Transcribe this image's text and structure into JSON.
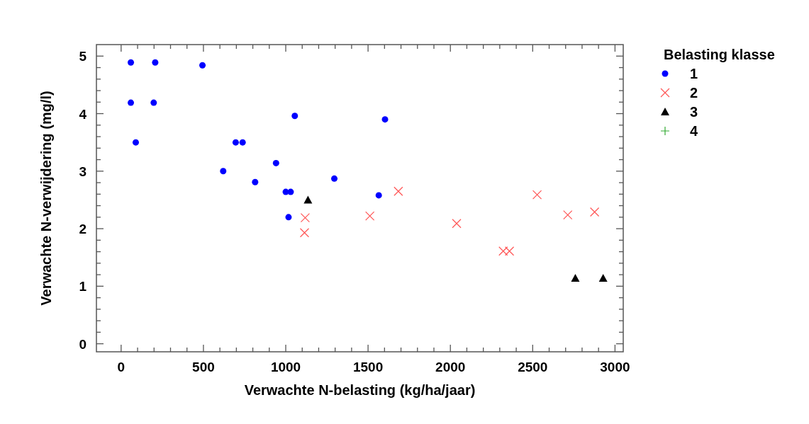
{
  "chart_data": {
    "type": "scatter",
    "xlabel": "Verwachte N-belasting (kg/ha/jaar)",
    "ylabel": "Verwachte N-verwijdering (mg/l)",
    "legend_title": "Belasting klasse",
    "legend": "right",
    "grid": false,
    "xlim": [
      -150,
      3050
    ],
    "ylim": [
      -0.14,
      5.2
    ],
    "xticks": [
      0,
      {
        "value": 100,
        "label": null
      },
      {
        "value": 200,
        "label": null
      },
      {
        "value": 300,
        "label": null
      },
      {
        "value": 400,
        "label": null
      },
      500,
      {
        "value": 600,
        "label": null
      },
      {
        "value": 700,
        "label": null
      },
      {
        "value": 800,
        "label": null
      },
      {
        "value": 900,
        "label": null
      },
      1000,
      {
        "value": 1100,
        "label": null
      },
      {
        "value": 1200,
        "label": null
      },
      {
        "value": 1300,
        "label": null
      },
      {
        "value": 1400,
        "label": null
      },
      1500,
      {
        "value": 1600,
        "label": null
      },
      {
        "value": 1700,
        "label": null
      },
      {
        "value": 1800,
        "label": null
      },
      {
        "value": 1900,
        "label": null
      },
      2000,
      {
        "value": 2100,
        "label": null
      },
      {
        "value": 2200,
        "label": null
      },
      {
        "value": 2300,
        "label": null
      },
      {
        "value": 2400,
        "label": null
      },
      2500,
      {
        "value": 2600,
        "label": null
      },
      {
        "value": 2700,
        "label": null
      },
      {
        "value": 2800,
        "label": null
      },
      {
        "value": 2900,
        "label": null
      },
      3000
    ],
    "yticks": [
      0,
      {
        "value": 0.2,
        "label": null
      },
      {
        "value": 0.4,
        "label": null
      },
      {
        "value": 0.6,
        "label": null
      },
      {
        "value": 0.8,
        "label": null
      },
      1,
      {
        "value": 1.2,
        "label": null
      },
      {
        "value": 1.4,
        "label": null
      },
      {
        "value": 1.6,
        "label": null
      },
      {
        "value": 1.8,
        "label": null
      },
      2,
      {
        "value": 2.2,
        "label": null
      },
      {
        "value": 2.4,
        "label": null
      },
      {
        "value": 2.6,
        "label": null
      },
      {
        "value": 2.8,
        "label": null
      },
      3,
      {
        "value": 3.2,
        "label": null
      },
      {
        "value": 3.4,
        "label": null
      },
      {
        "value": 3.6,
        "label": null
      },
      {
        "value": 3.8,
        "label": null
      },
      4,
      {
        "value": 4.2,
        "label": null
      },
      {
        "value": 4.4,
        "label": null
      },
      {
        "value": 4.6,
        "label": null
      },
      {
        "value": 4.8,
        "label": null
      },
      5
    ],
    "series": [
      {
        "name": "1",
        "color": "#0000ff",
        "marker": "circle",
        "x": [
          59,
          59,
          89,
          207,
          198,
          494,
          620,
          696,
          738,
          814,
          941,
          1000,
          1030,
          1017,
          1055,
          1295,
          1565,
          1603
        ],
        "values": [
          4.89,
          4.19,
          3.5,
          4.89,
          4.19,
          4.84,
          3.0,
          3.5,
          3.5,
          2.81,
          3.14,
          2.64,
          2.64,
          2.2,
          3.96,
          2.87,
          2.58,
          3.9
        ]
      },
      {
        "name": "2",
        "color": "#ff5555",
        "marker": "cross",
        "x": [
          1118,
          1114,
          1511,
          1684,
          2038,
          2321,
          2359,
          2527,
          2713,
          2876
        ],
        "values": [
          2.19,
          1.93,
          2.22,
          2.65,
          2.09,
          1.61,
          1.61,
          2.59,
          2.24,
          2.29
        ]
      },
      {
        "name": "3",
        "color": "#000000",
        "marker": "triangle",
        "x": [
          1135,
          2759,
          2928
        ],
        "values": [
          2.5,
          1.14,
          1.14
        ]
      },
      {
        "name": "4",
        "color": "#33aa33",
        "marker": "plus"
      }
    ]
  }
}
